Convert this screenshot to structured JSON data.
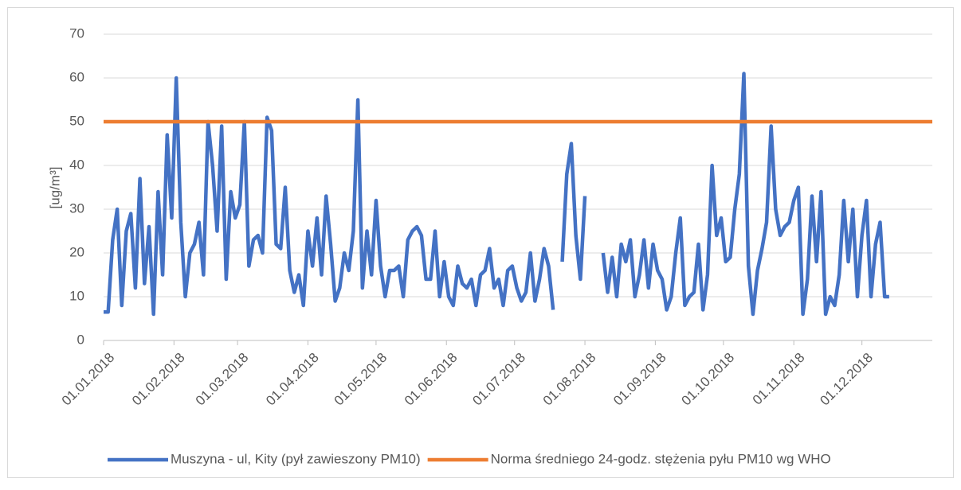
{
  "chart_data": {
    "type": "line",
    "ylabel": "[ug/m³]",
    "xlim": [
      0,
      365
    ],
    "ylim": [
      0,
      70
    ],
    "yticks": [
      0,
      10,
      20,
      30,
      40,
      50,
      60,
      70
    ],
    "xticks": [
      {
        "value": 0,
        "label": "01.01.2018"
      },
      {
        "value": 31,
        "label": "01.02.2018"
      },
      {
        "value": 59,
        "label": "01.03.2018"
      },
      {
        "value": 90,
        "label": "01.04.2018"
      },
      {
        "value": 120,
        "label": "01.05.2018"
      },
      {
        "value": 151,
        "label": "01.06.2018"
      },
      {
        "value": 181,
        "label": "01.07.2018"
      },
      {
        "value": 212,
        "label": "01.08.2018"
      },
      {
        "value": 243,
        "label": "01.09.2018"
      },
      {
        "value": 273,
        "label": "01.10.2018"
      },
      {
        "value": 304,
        "label": "01.11.2018"
      },
      {
        "value": 334,
        "label": "01.12.2018"
      }
    ],
    "grid": true,
    "legend": "bottom",
    "x": [
      0,
      2,
      4,
      6,
      8,
      10,
      12,
      14,
      16,
      18,
      20,
      22,
      24,
      26,
      28,
      30,
      32,
      34,
      36,
      38,
      40,
      42,
      44,
      46,
      48,
      50,
      52,
      54,
      56,
      58,
      60,
      62,
      64,
      66,
      68,
      70,
      72,
      74,
      76,
      78,
      80,
      82,
      84,
      86,
      88,
      90,
      92,
      94,
      96,
      98,
      100,
      102,
      104,
      106,
      108,
      110,
      112,
      114,
      116,
      118,
      120,
      122,
      124,
      126,
      128,
      130,
      132,
      134,
      136,
      138,
      140,
      142,
      144,
      146,
      148,
      150,
      152,
      154,
      156,
      158,
      160,
      162,
      164,
      166,
      168,
      170,
      172,
      174,
      176,
      178,
      180,
      182,
      184,
      186,
      188,
      190,
      192,
      194,
      196,
      198,
      200,
      202,
      204,
      206,
      208,
      210,
      212,
      214,
      216,
      218,
      220,
      222,
      224,
      226,
      228,
      230,
      232,
      234,
      236,
      238,
      240,
      242,
      244,
      246,
      248,
      250,
      252,
      254,
      256,
      258,
      260,
      262,
      264,
      266,
      268,
      270,
      272,
      274,
      276,
      278,
      280,
      282,
      284,
      286,
      288,
      290,
      292,
      294,
      296,
      298,
      300,
      302,
      304,
      306,
      308,
      310,
      312,
      314,
      316,
      318,
      320,
      322,
      324,
      326,
      328,
      330,
      332,
      334,
      336,
      338,
      340,
      342,
      344,
      346
    ],
    "series": [
      {
        "name": "Muszyna - ul, Kity (pył zawieszony PM10)",
        "color": "#4472c4",
        "values": [
          6.5,
          6.5,
          23,
          30,
          8,
          25,
          29,
          12,
          37,
          13,
          26,
          6,
          34,
          15,
          47,
          28,
          60,
          27,
          10,
          20,
          22,
          27,
          15,
          50,
          40,
          25,
          49,
          14,
          34,
          28,
          31,
          50,
          17,
          23,
          24,
          20,
          51,
          48,
          22,
          21,
          35,
          16,
          11,
          15,
          8,
          25,
          17,
          28,
          15,
          33,
          22,
          9,
          12,
          20,
          16,
          25,
          55,
          12,
          25,
          15,
          32,
          17,
          10,
          16,
          16,
          17,
          10,
          23,
          25,
          26,
          24,
          14,
          14,
          25,
          10,
          18,
          10,
          8,
          17,
          13,
          12,
          14,
          8,
          15,
          16,
          21,
          12,
          14,
          8,
          16,
          17,
          12,
          9,
          11,
          20,
          9,
          14,
          21,
          17,
          7,
          null,
          18,
          38,
          45,
          24,
          14,
          33,
          null,
          null,
          null,
          20,
          11,
          19,
          10,
          22,
          18,
          23,
          10,
          15,
          23,
          12,
          22,
          16,
          14,
          7,
          10,
          20,
          28,
          8,
          10,
          11,
          22,
          7,
          15,
          40,
          24,
          28,
          18,
          19,
          30,
          38,
          61,
          17,
          6,
          16,
          21,
          27,
          49,
          30,
          24,
          26,
          27,
          32,
          35,
          6,
          14,
          33,
          18,
          34,
          6,
          10,
          8,
          15,
          32,
          18,
          30,
          10,
          24,
          32,
          10,
          22,
          27,
          10,
          10
        ]
      },
      {
        "name": "Norma średniego 24-godz. stężenia pyłu PM10 wg WHO",
        "color": "#ed7d31",
        "x": [
          0,
          365
        ],
        "values": [
          50,
          50
        ]
      }
    ]
  }
}
